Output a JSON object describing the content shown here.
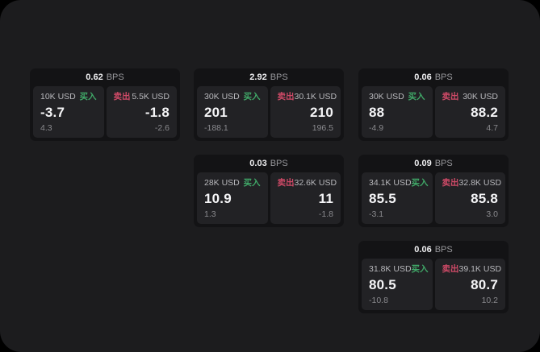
{
  "labels": {
    "bps": "BPS",
    "buy": "买入",
    "sell": "卖出"
  },
  "colors": {
    "background": "#000000",
    "surface": "#1c1c1e",
    "card": "#131315",
    "panel": "#222225",
    "buy_green": "#40a868",
    "sell_red": "#ce4a67",
    "value_white": "#f5f5f7",
    "muted_gray": "#8a8a8e"
  },
  "cards": [
    {
      "bps": "0.62",
      "col": 1,
      "row": 1,
      "buy": {
        "amount": "10K USD",
        "main": "-3.7",
        "sub": "4.3"
      },
      "sell": {
        "amount": "5.5K USD",
        "main": "-1.8",
        "sub": "-2.6"
      }
    },
    {
      "bps": "2.92",
      "col": 2,
      "row": 1,
      "buy": {
        "amount": "30K USD",
        "main": "201",
        "sub": "-188.1"
      },
      "sell": {
        "amount": "30.1K USD",
        "main": "210",
        "sub": "196.5"
      }
    },
    {
      "bps": "0.06",
      "col": 3,
      "row": 1,
      "buy": {
        "amount": "30K USD",
        "main": "88",
        "sub": "-4.9"
      },
      "sell": {
        "amount": "30K USD",
        "main": "88.2",
        "sub": "4.7"
      }
    },
    {
      "bps": "0.03",
      "col": 2,
      "row": 2,
      "buy": {
        "amount": "28K USD",
        "main": "10.9",
        "sub": "1.3"
      },
      "sell": {
        "amount": "32.6K USD",
        "main": "11",
        "sub": "-1.8"
      }
    },
    {
      "bps": "0.09",
      "col": 3,
      "row": 2,
      "buy": {
        "amount": "34.1K USD",
        "main": "85.5",
        "sub": "-3.1"
      },
      "sell": {
        "amount": "32.8K USD",
        "main": "85.8",
        "sub": "3.0"
      }
    },
    {
      "bps": "0.06",
      "col": 3,
      "row": 3,
      "buy": {
        "amount": "31.8K USD",
        "main": "80.5",
        "sub": "-10.8"
      },
      "sell": {
        "amount": "39.1K USD",
        "main": "80.7",
        "sub": "10.2"
      }
    }
  ]
}
